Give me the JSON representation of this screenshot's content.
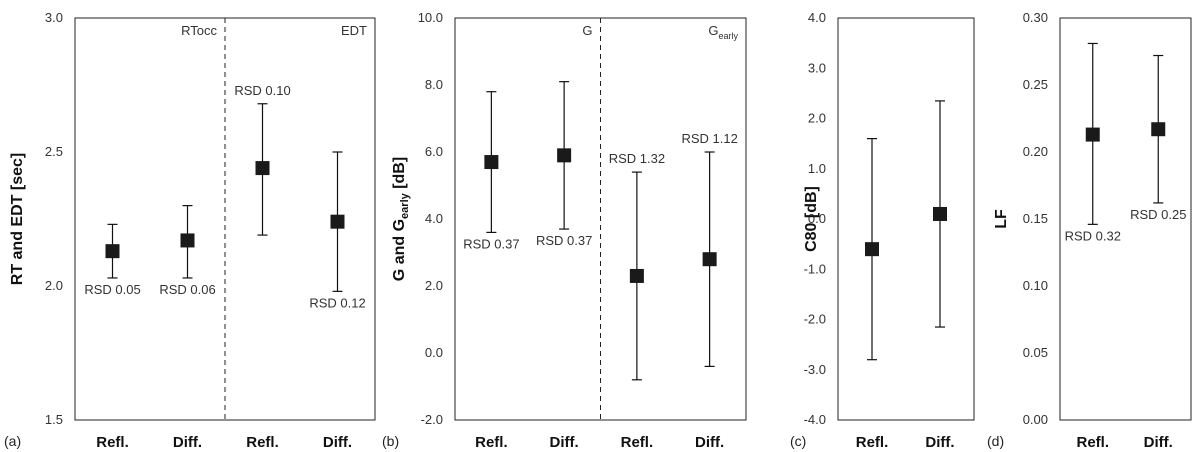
{
  "chart_data": [
    {
      "panel_label": "(a)",
      "type": "scatter",
      "error_bars": true,
      "ylabel": "RT and EDT [sec]",
      "ylim": [
        1.5,
        3.0
      ],
      "yticks": [
        "1.5",
        "2.0",
        "2.5",
        "3.0"
      ],
      "categories": [
        "Refl.",
        "Diff.",
        "Refl.",
        "Diff."
      ],
      "groups": [
        {
          "label": "RTocc",
          "label_sub": "",
          "start": 0,
          "end": 1
        },
        {
          "label": "EDT",
          "label_sub": "",
          "start": 2,
          "end": 3
        }
      ],
      "divider_after": 1,
      "points": [
        {
          "value": 2.13,
          "low": 2.03,
          "high": 2.23,
          "annotation": "RSD 0.05",
          "annotation_pos": "below"
        },
        {
          "value": 2.17,
          "low": 2.03,
          "high": 2.3,
          "annotation": "RSD 0.06",
          "annotation_pos": "below"
        },
        {
          "value": 2.44,
          "low": 2.19,
          "high": 2.68,
          "annotation": "RSD 0.10",
          "annotation_pos": "above"
        },
        {
          "value": 2.24,
          "low": 1.98,
          "high": 2.5,
          "annotation": "RSD 0.12",
          "annotation_pos": "below"
        }
      ]
    },
    {
      "panel_label": "(b)",
      "type": "scatter",
      "error_bars": true,
      "ylabel": "G and G",
      "ylabel_sub": "early",
      "ylabel_tail": " [dB]",
      "ylim": [
        -2.0,
        10.0
      ],
      "yticks": [
        "-2.0",
        "0.0",
        "2.0",
        "4.0",
        "6.0",
        "8.0",
        "10.0"
      ],
      "categories": [
        "Refl.",
        "Diff.",
        "Refl.",
        "Diff."
      ],
      "groups": [
        {
          "label": "G",
          "label_sub": "",
          "start": 0,
          "end": 1
        },
        {
          "label": "G",
          "label_sub": "early",
          "start": 2,
          "end": 3
        }
      ],
      "divider_after": 1,
      "points": [
        {
          "value": 5.7,
          "low": 3.6,
          "high": 7.8,
          "annotation": "RSD 0.37",
          "annotation_pos": "below"
        },
        {
          "value": 5.9,
          "low": 3.7,
          "high": 8.1,
          "annotation": "RSD 0.37",
          "annotation_pos": "below"
        },
        {
          "value": 2.3,
          "low": -0.8,
          "high": 5.4,
          "annotation": "RSD 1.32",
          "annotation_pos": "above"
        },
        {
          "value": 2.8,
          "low": -0.4,
          "high": 6.0,
          "annotation": "RSD 1.12",
          "annotation_pos": "above"
        }
      ]
    },
    {
      "panel_label": "(c)",
      "type": "scatter",
      "error_bars": true,
      "ylabel": "C80 [dB]",
      "ylim": [
        -4.0,
        4.0
      ],
      "yticks": [
        "-4.0",
        "-3.0",
        "-2.0",
        "-1.0",
        "0.0",
        "1.0",
        "2.0",
        "3.0",
        "4.0"
      ],
      "categories": [
        "Refl.",
        "Diff."
      ],
      "groups": [],
      "points": [
        {
          "value": -0.6,
          "low": -2.8,
          "high": 1.6,
          "annotation": "",
          "annotation_pos": "below"
        },
        {
          "value": 0.1,
          "low": -2.15,
          "high": 2.35,
          "annotation": "",
          "annotation_pos": "below"
        }
      ]
    },
    {
      "panel_label": "(d)",
      "type": "scatter",
      "error_bars": true,
      "ylabel": "LF",
      "ylim": [
        0.0,
        0.3
      ],
      "yticks": [
        "0.00",
        "0.05",
        "0.10",
        "0.15",
        "0.20",
        "0.25",
        "0.30"
      ],
      "categories": [
        "Refl.",
        "Diff."
      ],
      "groups": [],
      "points": [
        {
          "value": 0.213,
          "low": 0.146,
          "high": 0.281,
          "annotation": "RSD 0.32",
          "annotation_pos": "below"
        },
        {
          "value": 0.217,
          "low": 0.162,
          "high": 0.272,
          "annotation": "RSD 0.25",
          "annotation_pos": "below"
        }
      ]
    }
  ]
}
